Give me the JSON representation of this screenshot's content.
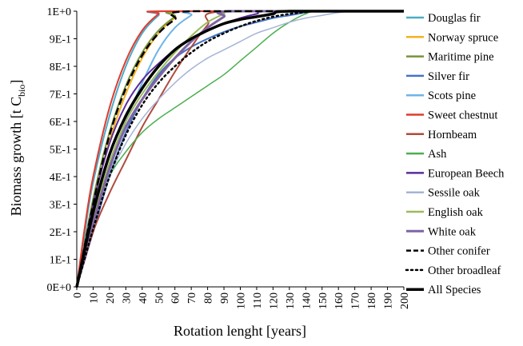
{
  "chart_data": {
    "type": "line",
    "xlabel": "Rotation lenght [years]",
    "ylabel_main": "Biomass growth [t C",
    "ylabel_sub": "bio",
    "ylabel_end": "]",
    "xlim": [
      0,
      200
    ],
    "ylim": [
      0,
      1
    ],
    "x_ticks": [
      0,
      10,
      20,
      30,
      40,
      50,
      60,
      70,
      80,
      90,
      100,
      110,
      120,
      130,
      140,
      150,
      160,
      170,
      180,
      190,
      200
    ],
    "x_tick_labels": [
      "0",
      "10",
      "20",
      "30",
      "40",
      "50",
      "60",
      "70",
      "80",
      "90",
      "100",
      "110",
      "120",
      "130",
      "140",
      "150",
      "160",
      "170",
      "180",
      "190",
      "200"
    ],
    "y_ticks": [
      0,
      0.1,
      0.2,
      0.3,
      0.4,
      0.5,
      0.6,
      0.7,
      0.8,
      0.9,
      1.0
    ],
    "y_tick_labels": [
      "0E+0",
      "1E-1",
      "2E-1",
      "3E-1",
      "4E-1",
      "5E-1",
      "6E-1",
      "7E-1",
      "8E-1",
      "9E-1",
      "1E+0"
    ],
    "grid": false,
    "legend_position": "right",
    "series": [
      {
        "name": "Douglas fir",
        "color": "#4bacc6",
        "dash": "solid",
        "width": 2,
        "points": [
          [
            0,
            0
          ],
          [
            5,
            0.2
          ],
          [
            10,
            0.38
          ],
          [
            20,
            0.62
          ],
          [
            30,
            0.8
          ],
          [
            40,
            0.92
          ],
          [
            50,
            0.985
          ],
          [
            55,
            1
          ],
          [
            200,
            1
          ]
        ]
      },
      {
        "name": "Norway spruce",
        "color": "#f5b21e",
        "dash": "solid",
        "width": 2,
        "points": [
          [
            0,
            0
          ],
          [
            10,
            0.3
          ],
          [
            20,
            0.53
          ],
          [
            30,
            0.7
          ],
          [
            40,
            0.83
          ],
          [
            50,
            0.92
          ],
          [
            60,
            0.975
          ],
          [
            70,
            1
          ],
          [
            200,
            1
          ]
        ]
      },
      {
        "name": "Maritime pine",
        "color": "#77933c",
        "dash": "solid",
        "width": 2,
        "points": [
          [
            0,
            0
          ],
          [
            10,
            0.32
          ],
          [
            20,
            0.56
          ],
          [
            30,
            0.73
          ],
          [
            40,
            0.85
          ],
          [
            50,
            0.93
          ],
          [
            60,
            0.98
          ],
          [
            66,
            1
          ],
          [
            200,
            1
          ]
        ]
      },
      {
        "name": "Silver fir",
        "color": "#4472c4",
        "dash": "solid",
        "width": 2,
        "points": [
          [
            0,
            0
          ],
          [
            10,
            0.2
          ],
          [
            20,
            0.4
          ],
          [
            30,
            0.56
          ],
          [
            40,
            0.68
          ],
          [
            50,
            0.77
          ],
          [
            60,
            0.83
          ],
          [
            70,
            0.87
          ],
          [
            80,
            0.9
          ],
          [
            90,
            0.925
          ],
          [
            100,
            0.945
          ],
          [
            110,
            0.96
          ],
          [
            120,
            0.975
          ],
          [
            130,
            0.985
          ],
          [
            140,
            0.995
          ],
          [
            150,
            1
          ],
          [
            200,
            1
          ]
        ]
      },
      {
        "name": "Scots pine",
        "color": "#6fb4e8",
        "dash": "solid",
        "width": 2,
        "points": [
          [
            0,
            0
          ],
          [
            10,
            0.22
          ],
          [
            20,
            0.42
          ],
          [
            30,
            0.6
          ],
          [
            40,
            0.74
          ],
          [
            50,
            0.86
          ],
          [
            60,
            0.94
          ],
          [
            70,
            0.985
          ],
          [
            75,
            1
          ],
          [
            200,
            1
          ]
        ]
      },
      {
        "name": "Sweet chestnut",
        "color": "#e23a2e",
        "dash": "solid",
        "width": 2,
        "points": [
          [
            0,
            0
          ],
          [
            5,
            0.22
          ],
          [
            10,
            0.4
          ],
          [
            20,
            0.65
          ],
          [
            30,
            0.82
          ],
          [
            40,
            0.93
          ],
          [
            50,
            0.99
          ],
          [
            55,
            1
          ],
          [
            200,
            1
          ]
        ]
      },
      {
        "name": "Hornbeam",
        "color": "#b04a3d",
        "dash": "solid",
        "width": 2,
        "points": [
          [
            0,
            0
          ],
          [
            10,
            0.2
          ],
          [
            20,
            0.34
          ],
          [
            30,
            0.46
          ],
          [
            40,
            0.58
          ],
          [
            50,
            0.68
          ],
          [
            60,
            0.78
          ],
          [
            70,
            0.87
          ],
          [
            80,
            0.95
          ],
          [
            90,
            1
          ],
          [
            200,
            1
          ]
        ]
      },
      {
        "name": "Ash",
        "color": "#4caf50",
        "dash": "solid",
        "width": 1.5,
        "points": [
          [
            0,
            0
          ],
          [
            10,
            0.24
          ],
          [
            20,
            0.4
          ],
          [
            30,
            0.49
          ],
          [
            40,
            0.56
          ],
          [
            50,
            0.61
          ],
          [
            60,
            0.65
          ],
          [
            70,
            0.69
          ],
          [
            80,
            0.73
          ],
          [
            90,
            0.77
          ],
          [
            100,
            0.82
          ],
          [
            110,
            0.87
          ],
          [
            120,
            0.92
          ],
          [
            130,
            0.96
          ],
          [
            140,
            0.99
          ],
          [
            150,
            1
          ],
          [
            200,
            1
          ]
        ]
      },
      {
        "name": "European Beech",
        "color": "#5b2c9a",
        "dash": "solid",
        "width": 2,
        "points": [
          [
            0,
            0
          ],
          [
            10,
            0.3
          ],
          [
            20,
            0.52
          ],
          [
            30,
            0.66
          ],
          [
            40,
            0.75
          ],
          [
            50,
            0.81
          ],
          [
            60,
            0.86
          ],
          [
            70,
            0.9
          ],
          [
            80,
            0.93
          ],
          [
            90,
            0.955
          ],
          [
            100,
            0.975
          ],
          [
            110,
            0.99
          ],
          [
            120,
            1
          ],
          [
            200,
            1
          ]
        ]
      },
      {
        "name": "Sessile oak",
        "color": "#a5b4d6",
        "dash": "solid",
        "width": 1.5,
        "points": [
          [
            0,
            0
          ],
          [
            10,
            0.22
          ],
          [
            20,
            0.4
          ],
          [
            30,
            0.52
          ],
          [
            40,
            0.61
          ],
          [
            50,
            0.68
          ],
          [
            60,
            0.74
          ],
          [
            70,
            0.79
          ],
          [
            80,
            0.83
          ],
          [
            90,
            0.86
          ],
          [
            100,
            0.89
          ],
          [
            110,
            0.92
          ],
          [
            120,
            0.94
          ],
          [
            130,
            0.96
          ],
          [
            140,
            0.975
          ],
          [
            150,
            0.985
          ],
          [
            160,
            0.995
          ],
          [
            170,
            1
          ],
          [
            200,
            1
          ]
        ]
      },
      {
        "name": "English oak",
        "color": "#9bbb59",
        "dash": "solid",
        "width": 2,
        "points": [
          [
            0,
            0
          ],
          [
            10,
            0.25
          ],
          [
            20,
            0.45
          ],
          [
            30,
            0.6
          ],
          [
            40,
            0.7
          ],
          [
            50,
            0.78
          ],
          [
            60,
            0.85
          ],
          [
            70,
            0.91
          ],
          [
            80,
            0.96
          ],
          [
            90,
            0.99
          ],
          [
            95,
            1
          ],
          [
            200,
            1
          ]
        ]
      },
      {
        "name": "White oak",
        "color": "#8064a2",
        "dash": "solid",
        "width": 3,
        "points": [
          [
            0,
            0
          ],
          [
            10,
            0.23
          ],
          [
            20,
            0.43
          ],
          [
            30,
            0.58
          ],
          [
            40,
            0.68
          ],
          [
            50,
            0.76
          ],
          [
            60,
            0.83
          ],
          [
            70,
            0.89
          ],
          [
            80,
            0.94
          ],
          [
            90,
            0.98
          ],
          [
            95,
            1
          ],
          [
            200,
            1
          ]
        ]
      },
      {
        "name": "Other conifer",
        "color": "#000000",
        "dash": "dashed",
        "width": 2.5,
        "points": [
          [
            0,
            0
          ],
          [
            10,
            0.3
          ],
          [
            20,
            0.55
          ],
          [
            30,
            0.72
          ],
          [
            40,
            0.84
          ],
          [
            50,
            0.92
          ],
          [
            60,
            0.97
          ],
          [
            70,
            1
          ],
          [
            200,
            1
          ]
        ]
      },
      {
        "name": "Other broadleaf",
        "color": "#000000",
        "dash": "dotted",
        "width": 2.5,
        "points": [
          [
            0,
            0
          ],
          [
            10,
            0.21
          ],
          [
            20,
            0.4
          ],
          [
            30,
            0.55
          ],
          [
            40,
            0.66
          ],
          [
            50,
            0.74
          ],
          [
            60,
            0.8
          ],
          [
            70,
            0.85
          ],
          [
            80,
            0.89
          ],
          [
            90,
            0.92
          ],
          [
            100,
            0.945
          ],
          [
            110,
            0.965
          ],
          [
            120,
            0.98
          ],
          [
            130,
            0.99
          ],
          [
            140,
            0.997
          ],
          [
            150,
            1
          ],
          [
            200,
            1
          ]
        ]
      },
      {
        "name": "All Species",
        "color": "#000000",
        "dash": "solid",
        "width": 3.5,
        "points": [
          [
            0,
            0
          ],
          [
            10,
            0.27
          ],
          [
            20,
            0.48
          ],
          [
            30,
            0.62
          ],
          [
            40,
            0.72
          ],
          [
            50,
            0.8
          ],
          [
            60,
            0.86
          ],
          [
            70,
            0.9
          ],
          [
            80,
            0.93
          ],
          [
            90,
            0.955
          ],
          [
            100,
            0.97
          ],
          [
            110,
            0.98
          ],
          [
            120,
            0.99
          ],
          [
            130,
            1
          ],
          [
            200,
            1
          ]
        ]
      }
    ]
  }
}
